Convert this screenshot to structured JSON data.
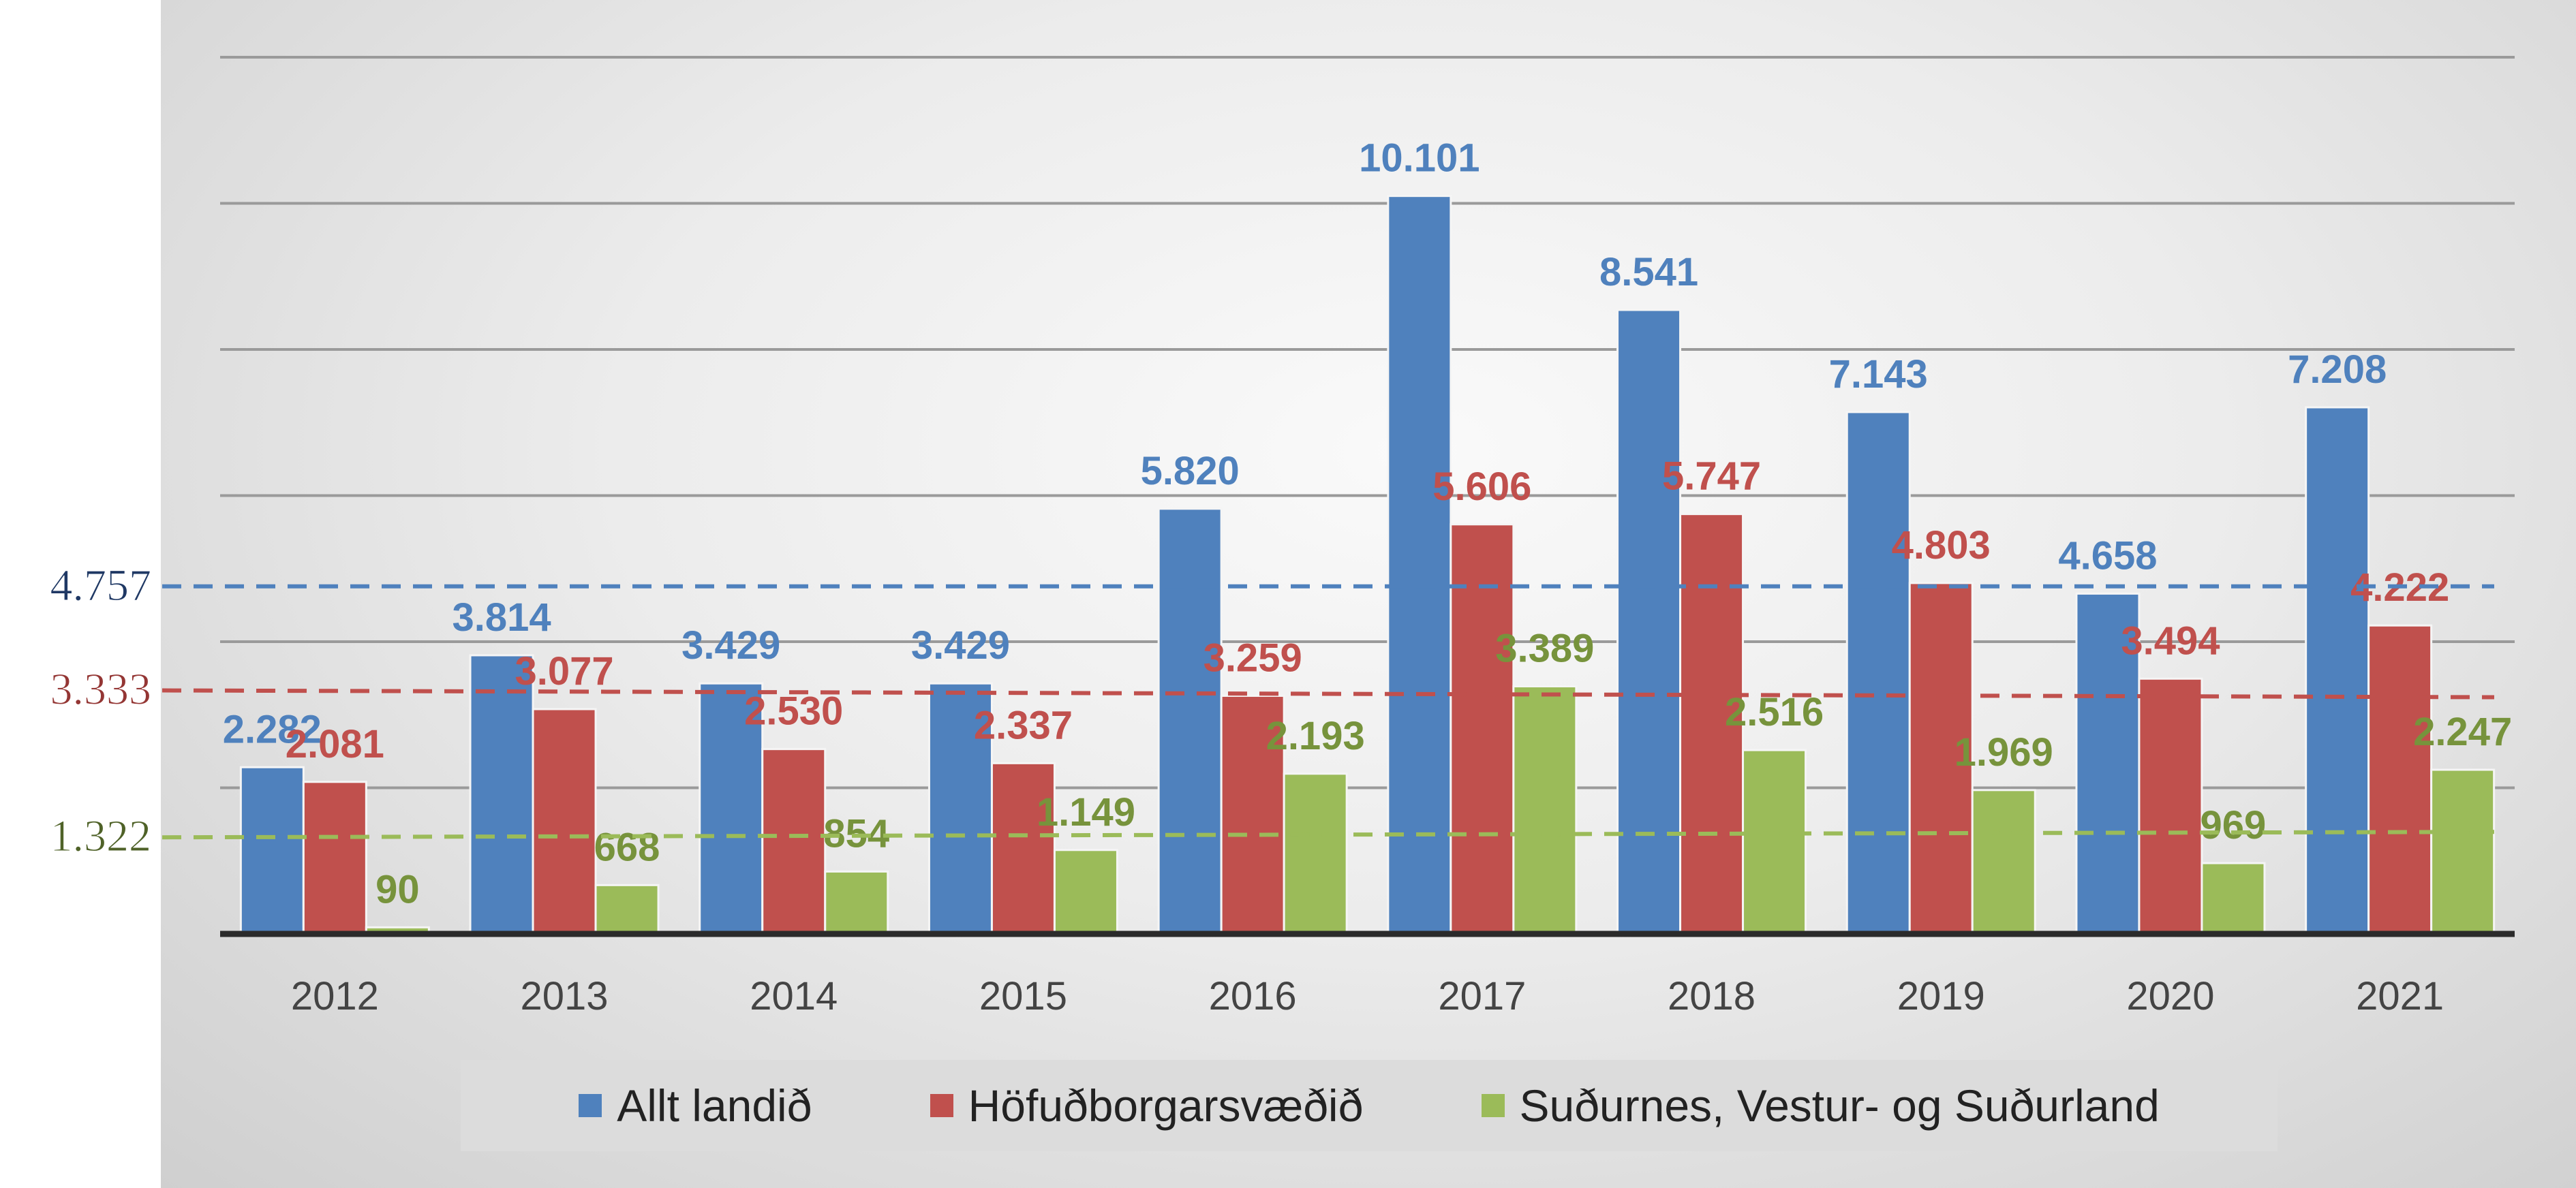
{
  "chart_data": {
    "type": "bar",
    "title": "",
    "xlabel": "",
    "ylabel": "",
    "categories": [
      "2012",
      "2013",
      "2014",
      "2015",
      "2016",
      "2017",
      "2018",
      "2019",
      "2020",
      "2021"
    ],
    "series": [
      {
        "name": "Allt landið",
        "color": "#4f81bd",
        "label_color": "#4f81bd",
        "values": [
          2282,
          3814,
          3429,
          3429,
          5820,
          10101,
          8541,
          7143,
          4658,
          7208
        ],
        "labels": [
          "2.282",
          "3.814",
          "3.429",
          "3.429",
          "5.820",
          "10.101",
          "8.541",
          "7.143",
          "4.658",
          "7.208"
        ]
      },
      {
        "name": "Höfuðborgarsvæðið",
        "color": "#c0504d",
        "label_color": "#c0504d",
        "values": [
          2081,
          3077,
          2530,
          2337,
          3259,
          5606,
          5747,
          4803,
          3494,
          4222
        ],
        "labels": [
          "2.081",
          "3.077",
          "2.530",
          "2.337",
          "3.259",
          "5.606",
          "5.747",
          "4.803",
          "3.494",
          "4.222"
        ]
      },
      {
        "name": "Suðurnes, Vestur- og Suðurland",
        "color": "#9bbb59",
        "label_color": "#77933c",
        "values": [
          90,
          668,
          854,
          1149,
          2193,
          3389,
          2516,
          1969,
          969,
          2247
        ],
        "labels": [
          "90",
          "668",
          "854",
          "1.149",
          "2.193",
          "3.389",
          "2.516",
          "1.969",
          "969",
          "2.247"
        ]
      }
    ],
    "averages": [
      {
        "series": "Allt landið",
        "value": 4757,
        "label": "4.757",
        "color": "#1f3864"
      },
      {
        "series": "Höfuðborgarsvæðið",
        "value": 3333,
        "label": "3.333",
        "color": "#943634"
      },
      {
        "series": "Suðurnes, Vestur- og Suðurland",
        "value": 1322,
        "label": "1.322",
        "color": "#4f6228"
      }
    ],
    "ylim": [
      0,
      12000
    ],
    "gridlines": true,
    "legend_position": "bottom"
  },
  "legend": {
    "items": [
      {
        "label": "Allt landið",
        "color": "#4f81bd"
      },
      {
        "label": "Höfuðborgarsvæðið",
        "color": "#c0504d"
      },
      {
        "label": "Suðurnes, Vestur- og Suðurland",
        "color": "#9bbb59"
      }
    ]
  }
}
